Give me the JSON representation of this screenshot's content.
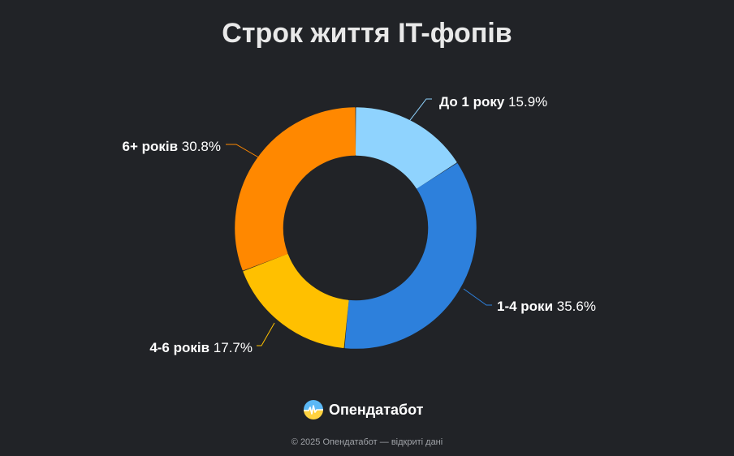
{
  "chart_data": {
    "type": "pie",
    "variant": "donut",
    "title": "Строк життя IT-фопів",
    "slices": [
      {
        "label": "До 1 року",
        "value": 15.9,
        "display": "15.9%",
        "color": "#8fd3fe"
      },
      {
        "label": "1-4 роки",
        "value": 35.6,
        "display": "35.6%",
        "color": "#2d80dc"
      },
      {
        "label": "4-6 років",
        "value": 17.7,
        "display": "17.7%",
        "color": "#ffc000"
      },
      {
        "label": "6+ років",
        "value": 30.8,
        "display": "30.8%",
        "color": "#ff8800"
      }
    ],
    "start": "top, clockwise",
    "legend": "none (labels beside slices)"
  },
  "brand": {
    "name": "Опендатабот",
    "logo_icon": "opendatabot-logo-icon"
  },
  "footer": {
    "text": "© 2025 Опендатабот — відкриті дані"
  },
  "colors": {
    "background": "#212327",
    "title": "#e9e9e9",
    "footer": "#a0a3a8"
  }
}
